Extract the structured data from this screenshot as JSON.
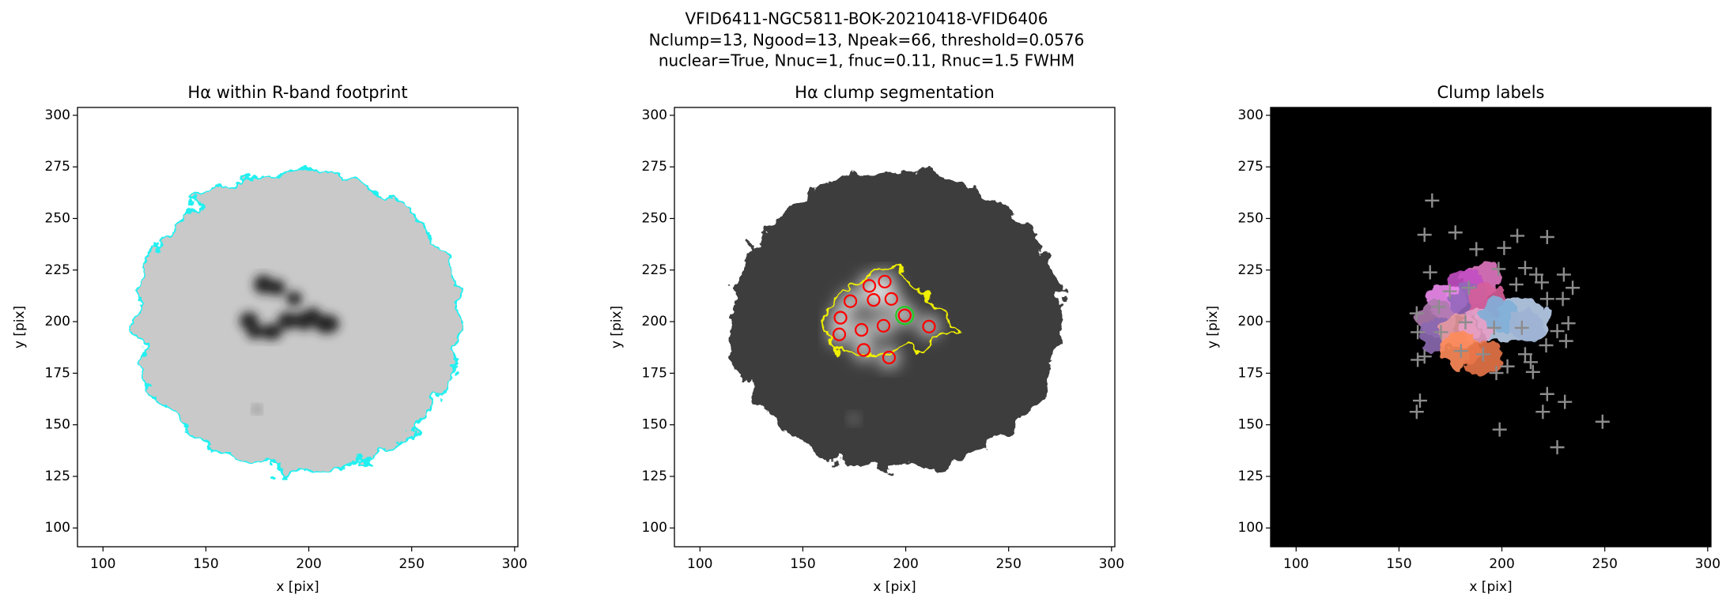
{
  "suptitle": [
    "VFID6411-NGC5811-BOK-20210418-VFID6406",
    "Nclump=13, Ngood=13, Npeak=66, threshold=0.0576",
    "nuclear=True, Nnuc=1, fnuc=0.11, Rnuc=1.5 FWHM"
  ],
  "chart_data": [
    {
      "type": "image",
      "title": "Hα within R-band footprint",
      "xlabel": "x [pix]",
      "ylabel": "y [pix]",
      "xlim": [
        87.6,
        301.6
      ],
      "ylim": [
        90.9,
        303.8
      ],
      "xticks": [
        100,
        150,
        200,
        250,
        300
      ],
      "yticks": [
        100,
        125,
        150,
        175,
        200,
        225,
        250,
        275,
        300
      ]
    },
    {
      "type": "scatter",
      "title": "Hα clump segmentation",
      "xlabel": "x [pix]",
      "ylabel": "y [pix]",
      "xlim": [
        87.6,
        301.6
      ],
      "ylim": [
        90.9,
        303.8
      ],
      "xticks": [
        100,
        150,
        200,
        250,
        300
      ],
      "yticks": [
        100,
        125,
        150,
        175,
        200,
        225,
        250,
        275,
        300
      ],
      "color": "#ff0000",
      "x": [
        189.8,
        182.3,
        173.1,
        184.4,
        193.0,
        168.3,
        167.7,
        178.5,
        189.2,
        199.5,
        211.3,
        179.6,
        191.9
      ],
      "y": [
        219.4,
        217.3,
        209.9,
        210.5,
        211.0,
        201.9,
        193.8,
        196.0,
        198.0,
        203.0,
        197.6,
        186.3,
        182.6
      ]
    },
    {
      "type": "scatter",
      "title": "Clump labels",
      "xlabel": "x [pix]",
      "ylabel": "y [pix]",
      "xlim": [
        87.6,
        301.6
      ],
      "ylim": [
        90.9,
        303.8
      ],
      "xticks": [
        100,
        150,
        200,
        250,
        300
      ],
      "yticks": [
        100,
        125,
        150,
        175,
        200,
        225,
        250,
        275,
        300
      ],
      "color": "#8c8c8c",
      "x": [
        166.1,
        177.4,
        162.4,
        187.6,
        207.5,
        222.0,
        201.1,
        165.1,
        198.4,
        211.3,
        216.7,
        230.1,
        219.4,
        207.0,
        183.9,
        234.4,
        229.6,
        222.0,
        158.6,
        232.3,
        159.1,
        170.4,
        182.3,
        196.2,
        209.7,
        226.9,
        231.2,
        162.4,
        180.1,
        190.9,
        211.3,
        197.3,
        202.7,
        214.0,
        221.5,
        215.1,
        222.0,
        219.9,
        230.6,
        160.2,
        158.6,
        198.9,
        248.9,
        226.9,
        174.7,
        169.4,
        159.1
      ],
      "y": [
        258.7,
        243.2,
        242.1,
        235.1,
        241.6,
        241.0,
        235.7,
        223.9,
        225.5,
        226.0,
        222.8,
        222.8,
        219.0,
        218.0,
        216.4,
        216.4,
        211.0,
        211.0,
        204.0,
        199.2,
        194.9,
        194.9,
        199.7,
        197.0,
        197.0,
        195.4,
        190.6,
        183.1,
        185.8,
        184.2,
        184.2,
        175.1,
        178.3,
        180.4,
        188.5,
        175.6,
        164.9,
        156.3,
        161.1,
        161.7,
        156.3,
        147.7,
        151.5,
        139.1,
        214.7,
        207.2,
        181.5
      ]
    }
  ]
}
